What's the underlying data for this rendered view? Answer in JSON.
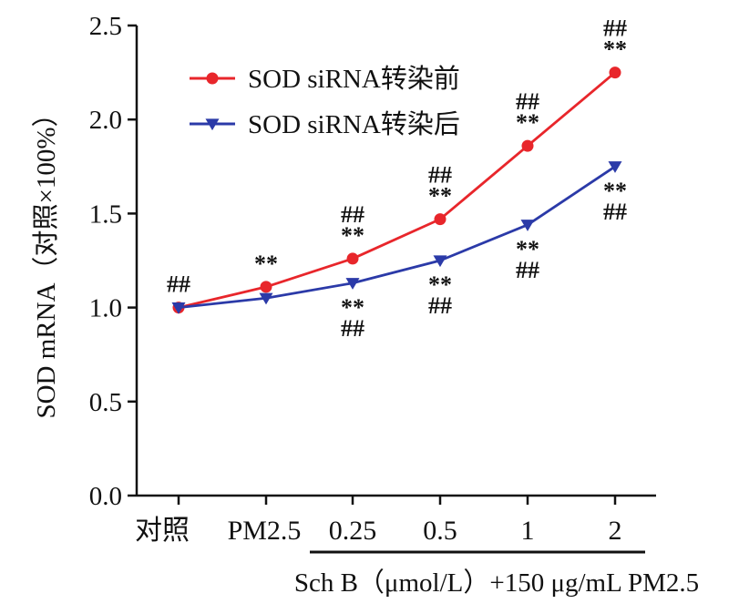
{
  "chart_data": {
    "type": "line",
    "categories": [
      "对照",
      "PM2.5",
      "0.25",
      "0.5",
      "1",
      "2"
    ],
    "ylabel": "SOD mRNA（对照×100%）",
    "xlabel": "Sch B（μmol/L）+150 μg/mL PM2.5",
    "ylim": [
      0,
      2.5
    ],
    "yticks": [
      "0.0",
      "0.5",
      "1.0",
      "1.5",
      "2.0",
      "2.5"
    ],
    "grid": false,
    "legend_position": "top-left",
    "series": [
      {
        "name": "SOD siRNA转染前",
        "color": "#e8262b",
        "marker": "circle",
        "values": [
          1.0,
          1.11,
          1.26,
          1.47,
          1.86,
          2.25
        ],
        "annotations": [
          [
            "##"
          ],
          [
            "**"
          ],
          [
            "##",
            "**"
          ],
          [
            "##",
            "**"
          ],
          [
            "##",
            "**"
          ],
          [
            "##",
            "**"
          ]
        ]
      },
      {
        "name": "SOD siRNA转染后",
        "color": "#2b3aa8",
        "marker": "triangle-down",
        "values": [
          1.0,
          1.05,
          1.13,
          1.25,
          1.44,
          1.75
        ],
        "annotations": [
          [],
          [],
          [
            "**",
            "##"
          ],
          [
            "**",
            "##"
          ],
          [
            "**",
            "##"
          ],
          [
            "**",
            "##"
          ]
        ]
      }
    ]
  }
}
